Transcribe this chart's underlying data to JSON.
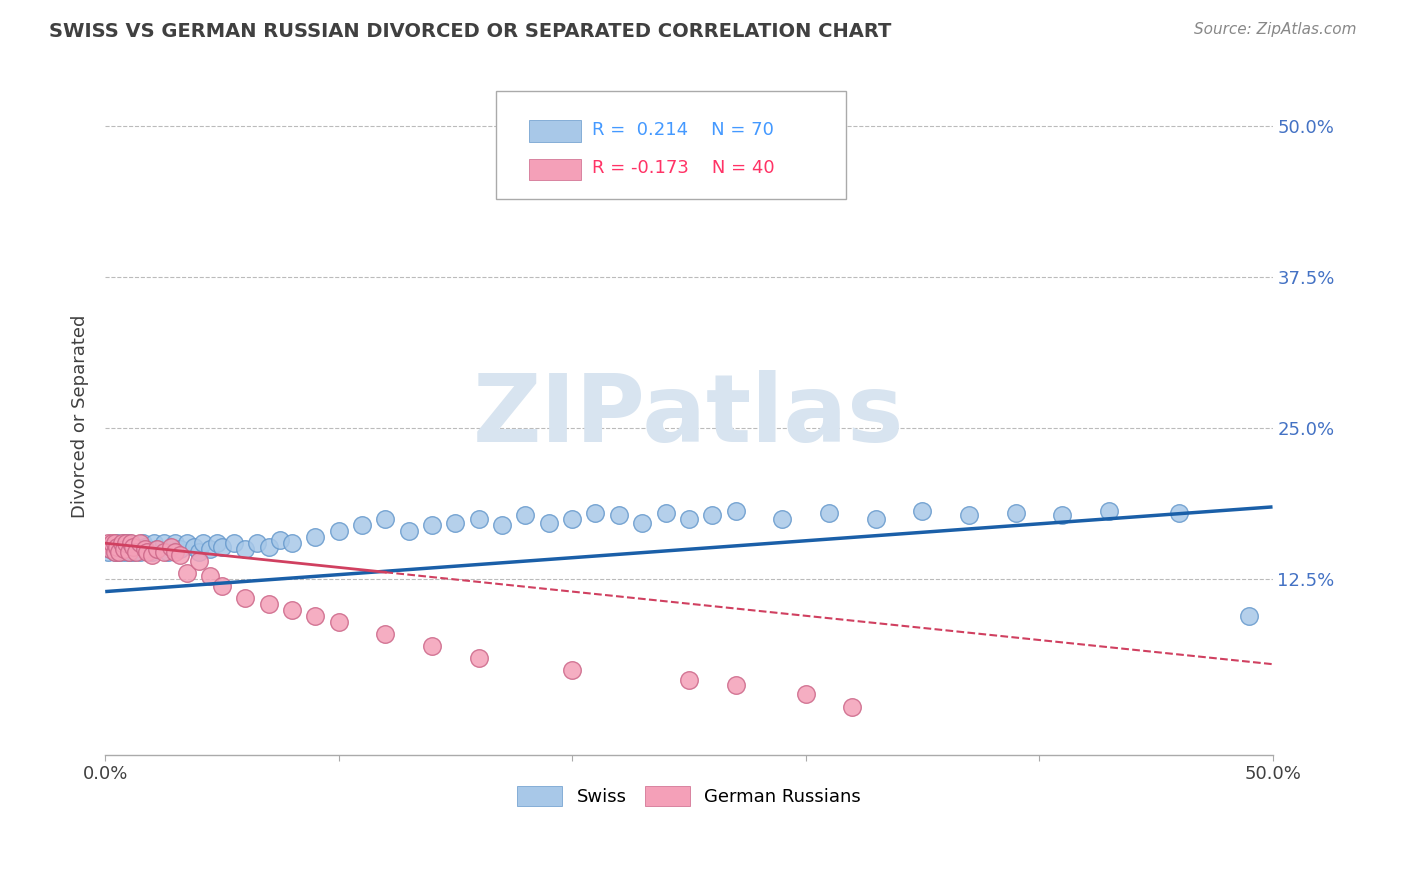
{
  "title": "SWISS VS GERMAN RUSSIAN DIVORCED OR SEPARATED CORRELATION CHART",
  "source_text": "Source: ZipAtlas.com",
  "ylabel": "Divorced or Separated",
  "xlim": [
    0.0,
    0.5
  ],
  "ylim": [
    -0.02,
    0.54
  ],
  "swiss_R": 0.214,
  "swiss_N": 70,
  "german_R": -0.173,
  "german_N": 40,
  "swiss_color": "#a8c8e8",
  "german_color": "#f4a0b8",
  "swiss_line_color": "#1a5fa8",
  "german_line_color": "#d04060",
  "background_color": "#ffffff",
  "grid_color": "#bbbbbb",
  "title_color": "#404040",
  "legend_R_swiss_color": "#4499ff",
  "legend_R_german_color": "#ff3366",
  "swiss_x": [
    0.001,
    0.002,
    0.003,
    0.004,
    0.005,
    0.005,
    0.006,
    0.007,
    0.008,
    0.008,
    0.009,
    0.01,
    0.01,
    0.011,
    0.012,
    0.013,
    0.014,
    0.015,
    0.016,
    0.017,
    0.018,
    0.02,
    0.021,
    0.022,
    0.025,
    0.027,
    0.03,
    0.032,
    0.035,
    0.038,
    0.04,
    0.042,
    0.045,
    0.048,
    0.05,
    0.055,
    0.06,
    0.065,
    0.07,
    0.075,
    0.08,
    0.09,
    0.1,
    0.11,
    0.12,
    0.13,
    0.14,
    0.15,
    0.16,
    0.17,
    0.18,
    0.19,
    0.2,
    0.21,
    0.22,
    0.23,
    0.24,
    0.25,
    0.26,
    0.27,
    0.29,
    0.31,
    0.33,
    0.35,
    0.37,
    0.39,
    0.41,
    0.43,
    0.46,
    0.49
  ],
  "swiss_y": [
    0.148,
    0.15,
    0.152,
    0.148,
    0.15,
    0.155,
    0.148,
    0.152,
    0.148,
    0.155,
    0.15,
    0.148,
    0.155,
    0.15,
    0.148,
    0.152,
    0.15,
    0.148,
    0.155,
    0.152,
    0.15,
    0.148,
    0.155,
    0.15,
    0.155,
    0.148,
    0.155,
    0.15,
    0.155,
    0.152,
    0.148,
    0.155,
    0.15,
    0.155,
    0.152,
    0.155,
    0.15,
    0.155,
    0.152,
    0.158,
    0.155,
    0.16,
    0.165,
    0.17,
    0.175,
    0.165,
    0.17,
    0.172,
    0.175,
    0.17,
    0.178,
    0.172,
    0.175,
    0.18,
    0.178,
    0.172,
    0.18,
    0.175,
    0.178,
    0.182,
    0.175,
    0.18,
    0.175,
    0.182,
    0.178,
    0.18,
    0.178,
    0.182,
    0.18,
    0.095
  ],
  "german_x": [
    0.001,
    0.002,
    0.003,
    0.004,
    0.004,
    0.005,
    0.006,
    0.007,
    0.008,
    0.009,
    0.01,
    0.011,
    0.012,
    0.013,
    0.015,
    0.017,
    0.018,
    0.02,
    0.022,
    0.025,
    0.028,
    0.03,
    0.032,
    0.035,
    0.04,
    0.045,
    0.05,
    0.06,
    0.07,
    0.08,
    0.09,
    0.1,
    0.12,
    0.14,
    0.16,
    0.2,
    0.25,
    0.27,
    0.3,
    0.32
  ],
  "german_y": [
    0.155,
    0.15,
    0.155,
    0.148,
    0.155,
    0.152,
    0.148,
    0.155,
    0.15,
    0.155,
    0.148,
    0.155,
    0.152,
    0.148,
    0.155,
    0.15,
    0.148,
    0.145,
    0.15,
    0.148,
    0.152,
    0.148,
    0.145,
    0.13,
    0.14,
    0.128,
    0.12,
    0.11,
    0.105,
    0.1,
    0.095,
    0.09,
    0.08,
    0.07,
    0.06,
    0.05,
    0.042,
    0.038,
    0.03,
    0.02
  ]
}
